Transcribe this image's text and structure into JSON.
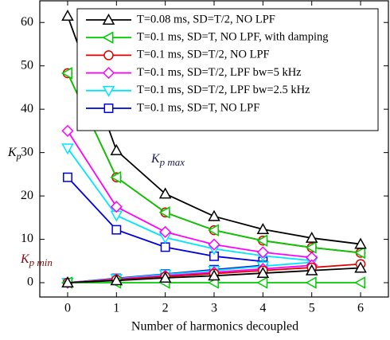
{
  "chart_data": {
    "type": "line",
    "xlabel": "Number of harmonics decoupled",
    "ylabel": {
      "main": "K",
      "sub": "p"
    },
    "annotations": [
      {
        "main": "K",
        "sub": "p max",
        "color": "#1c1c5a"
      },
      {
        "main": "K",
        "sub": "p min",
        "color": "#7a1010"
      }
    ],
    "x": [
      0,
      1,
      2,
      3,
      4,
      5,
      6
    ],
    "xlim": [
      -0.57,
      6.57
    ],
    "xticks": [
      0,
      1,
      2,
      3,
      4,
      5,
      6
    ],
    "ylim": [
      -3.3,
      65
    ],
    "yticks": [
      0,
      10,
      20,
      30,
      40,
      50,
      60
    ],
    "series": [
      {
        "name": "T=0.08 ms, SD=T/2, NO LPF",
        "color": "#000000",
        "marker": "triangle-up",
        "values_max": [
          61.5,
          30.5,
          20.5,
          15.3,
          12.3,
          10.3,
          8.9
        ],
        "values_min": [
          0,
          0.5,
          1.1,
          1.6,
          2.2,
          2.8,
          3.4
        ]
      },
      {
        "name": "T=0.1 ms, SD=T, NO LPF, with damping",
        "color": "#00cc00",
        "marker": "triangle-left",
        "values_max": [
          48.3,
          24.3,
          16.2,
          12.1,
          9.7,
          8.1,
          6.9
        ],
        "values_min": [
          0,
          0,
          0,
          0,
          0,
          0,
          0
        ]
      },
      {
        "name": "T=0.1 ms, SD=T/2, NO LPF",
        "color": "#e00000",
        "marker": "circle",
        "values_max": [
          48.3,
          24.3,
          16.2,
          12.1,
          9.7,
          8.1,
          6.9
        ],
        "values_min": [
          0,
          0.7,
          1.4,
          2.1,
          2.8,
          3.5,
          4.3
        ]
      },
      {
        "name": "T=0.1 ms, SD=T/2, LPF bw=5 kHz",
        "color": "#ff00ff",
        "marker": "diamond",
        "values_max": [
          35,
          17.5,
          11.7,
          8.8,
          7,
          5.8,
          null
        ],
        "values_min": [
          0,
          0.8,
          1.6,
          2.4,
          3.2,
          4,
          null
        ]
      },
      {
        "name": "T=0.1 ms, SD=T/2, LPF bw=2.5 kHz",
        "color": "#00e5ff",
        "marker": "triangle-down",
        "values_max": [
          31,
          15.5,
          10.4,
          7.8,
          6.2,
          5.1,
          null
        ],
        "values_min": [
          0,
          0.9,
          1.9,
          2.8,
          3.8,
          4.7,
          null
        ]
      },
      {
        "name": "T=0.1 ms, SD=T, NO LPF",
        "color": "#0000dd",
        "marker": "square",
        "values_max": [
          24.3,
          12.2,
          8.2,
          6.1,
          4.9,
          null,
          null
        ],
        "values_min": [
          0,
          1,
          2,
          3,
          4,
          null,
          null
        ]
      }
    ]
  }
}
